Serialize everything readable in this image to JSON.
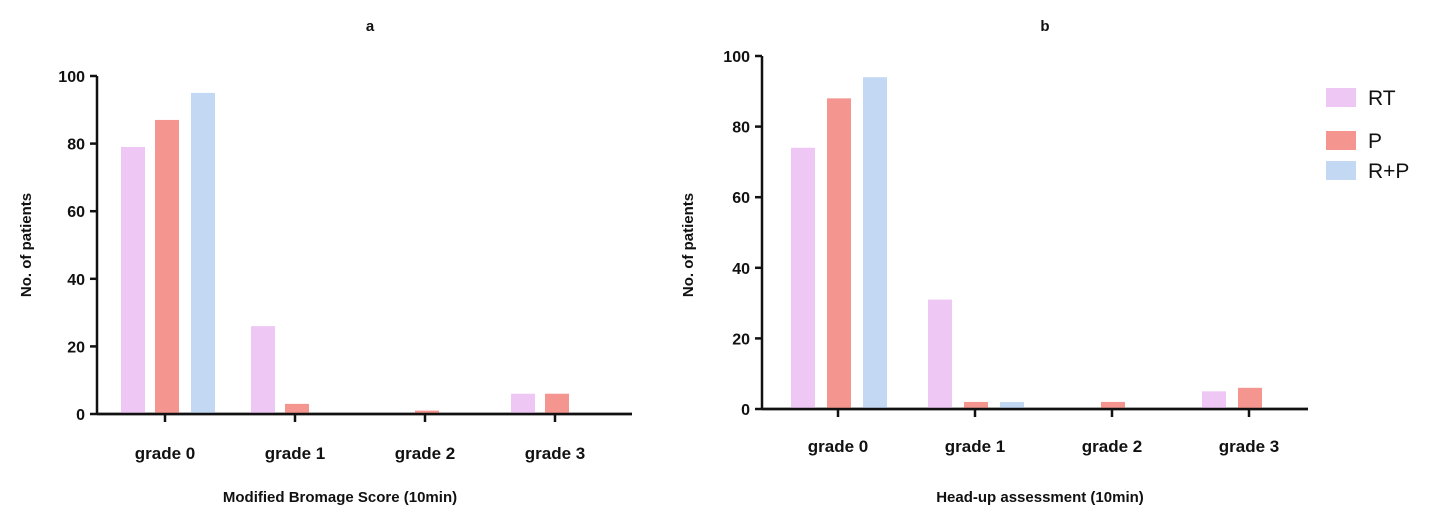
{
  "colors": {
    "RT": "#efc7f5",
    "P": "#f5958f",
    "R+P": "#c3d9f3",
    "axis": "#111111"
  },
  "legend": {
    "placement": "top-right",
    "items": [
      {
        "label": "RT",
        "color": "#efc7f5"
      },
      {
        "label": "P",
        "color": "#f5958f"
      },
      {
        "label": "R+P",
        "color": "#c3d9f3"
      }
    ]
  },
  "chart_data": [
    {
      "type": "bar",
      "title": "a",
      "xlabel": "Modified Bromage Score  (10min)",
      "ylabel": "No. of patients",
      "ylim": [
        0,
        100
      ],
      "yticks": [
        "0",
        "20",
        "40",
        "60",
        "80",
        "100"
      ],
      "grid": false,
      "categories": [
        "grade 0",
        "grade 1",
        "grade 2",
        "grade 3"
      ],
      "series": [
        {
          "name": "RT",
          "values": [
            79,
            26,
            0,
            6
          ]
        },
        {
          "name": "P",
          "values": [
            87,
            3,
            1,
            6
          ]
        },
        {
          "name": "R+P",
          "values": [
            95,
            0,
            0,
            0
          ]
        }
      ]
    },
    {
      "type": "bar",
      "title": "b",
      "xlabel": "Head-up assessment (10min)",
      "ylabel": "No. of patients",
      "ylim": [
        0,
        100
      ],
      "yticks": [
        "0",
        "20",
        "40",
        "60",
        "80",
        "100"
      ],
      "grid": false,
      "categories": [
        "grade 0",
        "grade 1",
        "grade 2",
        "grade 3"
      ],
      "series": [
        {
          "name": "RT",
          "values": [
            74,
            31,
            0,
            5
          ]
        },
        {
          "name": "P",
          "values": [
            88,
            2,
            2,
            6
          ]
        },
        {
          "name": "R+P",
          "values": [
            94,
            2,
            0,
            0
          ]
        }
      ]
    }
  ]
}
